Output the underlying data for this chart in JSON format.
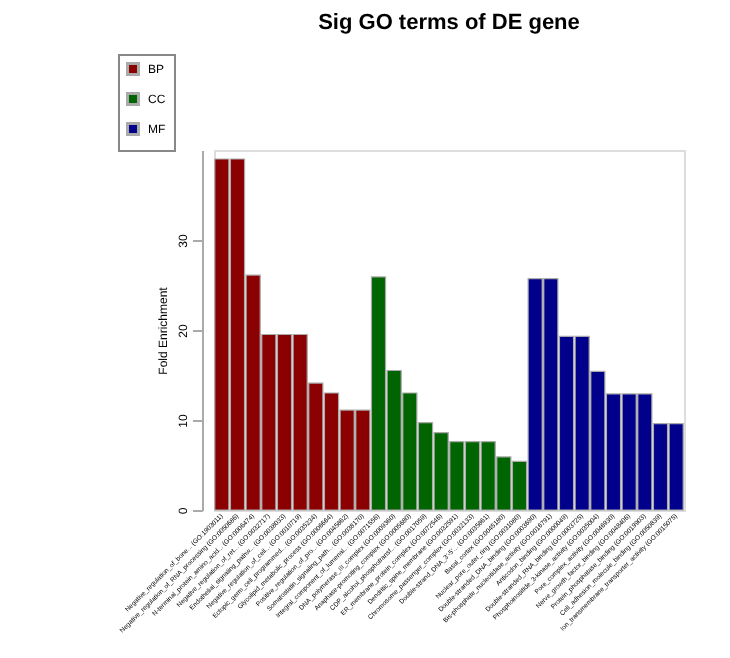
{
  "chart_data": {
    "type": "bar",
    "title": "Sig GO terms of DE gene",
    "ylabel": "Fold Enrichment",
    "categories": [
      "Negative_regulation_of_bone... (GO:1903011)",
      "Negative_regulation_of_RNA_processing (GO:0050686)",
      "N-terminal_protein_amino_acid... (GO:0006474)",
      "Negative_regulation_of_ret... (GO:0032717)",
      "Endothelial_signaling_pathw... (GO:0038033)",
      "Negative_regulation_of_cell... (GO:0010719)",
      "Ectopic_germ_cell_programmed... (GO:0035234)",
      "Glycolipid_metabolic_process (GO:0006664)",
      "Positive_regulation_of_pro... (GO:0045862)",
      "Somatostatin_signaling_path... (GO:0038170)",
      "Integral_component_of_lumenal... (GO:0071556)",
      "DNA_polymerase_III_complex (GO:0009360)",
      "Anaphase-promoting_complex (GO:0005680)",
      "CDP_alcohol_phosphotransf... (GO:0017059)",
      "ER_membrane_protein_complex (GO:0072546)",
      "Dendritic_spine_membrane (GO:0032591)",
      "Chromosome_passenger_complex (GO:0032133)",
      "Double-strand_DNA_3'-5'... (GO:0035861)",
      "Basal_cortex (GO:0045180)",
      "Nuclear_pore_outer_ring (GO:0031080)",
      "Double-stranded_DNA_binding (GO:0003690)",
      "Bis-phosphate_nucleotidase_activity (GO:0016791)",
      "Anticodon_binding (GO:0000049)",
      "Double-stranded_RNA_binding (GO:0003725)",
      "Phosphoinositide_3-kinase_activity (GO:0035004)",
      "Pore_complex_activity (GO:0046930)",
      "Nerve_growth_factor_binding (GO:0048406)",
      "Protein_phosphatase_binding (GO:0019903)",
      "Cell_adhesion_molecule_binding (GO:0050839)",
      "Ion_transmembrane_transporter_activity (GO:0015075)"
    ],
    "series": [
      {
        "name": "BP",
        "color": "#8b0000",
        "values": [
          39,
          39,
          26.1,
          19.5,
          19.5,
          19.5,
          14.1,
          13.0,
          11.1,
          11.1,
          null,
          null,
          null,
          null,
          null,
          null,
          null,
          null,
          null,
          null,
          null,
          null,
          null,
          null,
          null,
          null,
          null,
          null,
          null,
          null
        ]
      },
      {
        "name": "CC",
        "color": "#006400",
        "values": [
          null,
          null,
          null,
          null,
          null,
          null,
          null,
          null,
          null,
          null,
          25.9,
          15.5,
          13.0,
          9.7,
          8.6,
          7.6,
          7.6,
          7.6,
          5.9,
          5.4,
          null,
          null,
          null,
          null,
          null,
          null,
          null,
          null,
          null,
          null
        ]
      },
      {
        "name": "MF",
        "color": "#00008b",
        "values": [
          null,
          null,
          null,
          null,
          null,
          null,
          null,
          null,
          null,
          null,
          null,
          null,
          null,
          null,
          null,
          null,
          null,
          null,
          null,
          null,
          25.7,
          25.7,
          19.3,
          19.3,
          15.4,
          12.9,
          12.9,
          12.9,
          9.6,
          9.6
        ]
      }
    ],
    "ylim": [
      0,
      40
    ],
    "yticks": [
      0,
      10,
      20,
      30
    ],
    "grid": false,
    "legend": "top left"
  }
}
